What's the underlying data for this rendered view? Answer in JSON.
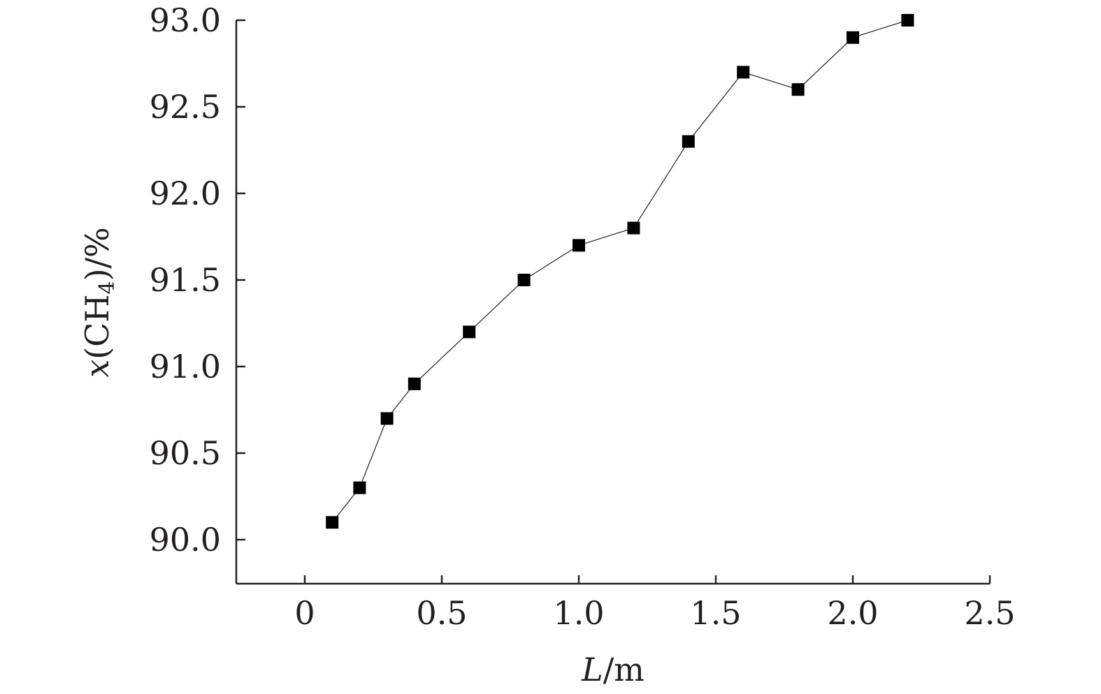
{
  "chart_data": {
    "type": "line",
    "xlabel": "L/m",
    "ylabel": "x(CH4)/%",
    "xlim": [
      -0.25,
      2.5
    ],
    "ylim": [
      89.75,
      93.0
    ],
    "xticks": [
      0,
      0.5,
      1.0,
      1.5,
      2.0,
      2.5
    ],
    "xtick_labels": [
      "0",
      "0.5",
      "1.0",
      "1.5",
      "2.0",
      "2.5"
    ],
    "yticks": [
      90.0,
      90.5,
      91.0,
      91.5,
      92.0,
      92.5,
      93.0
    ],
    "ytick_labels": [
      "90.0",
      "90.5",
      "91.0",
      "91.5",
      "92.0",
      "92.5",
      "93.0"
    ],
    "grid": false,
    "marker": "square",
    "colors": {
      "axis": "#231f20",
      "series": "#000000"
    },
    "series": [
      {
        "x": [
          0.1,
          0.2,
          0.3,
          0.4,
          0.6,
          0.8,
          1.0,
          1.2,
          1.4,
          1.6,
          1.8,
          2.0,
          2.2
        ],
        "y": [
          90.1,
          90.3,
          90.7,
          90.9,
          91.2,
          91.5,
          91.7,
          91.8,
          92.3,
          92.7,
          92.6,
          92.9,
          93.0
        ]
      }
    ]
  }
}
